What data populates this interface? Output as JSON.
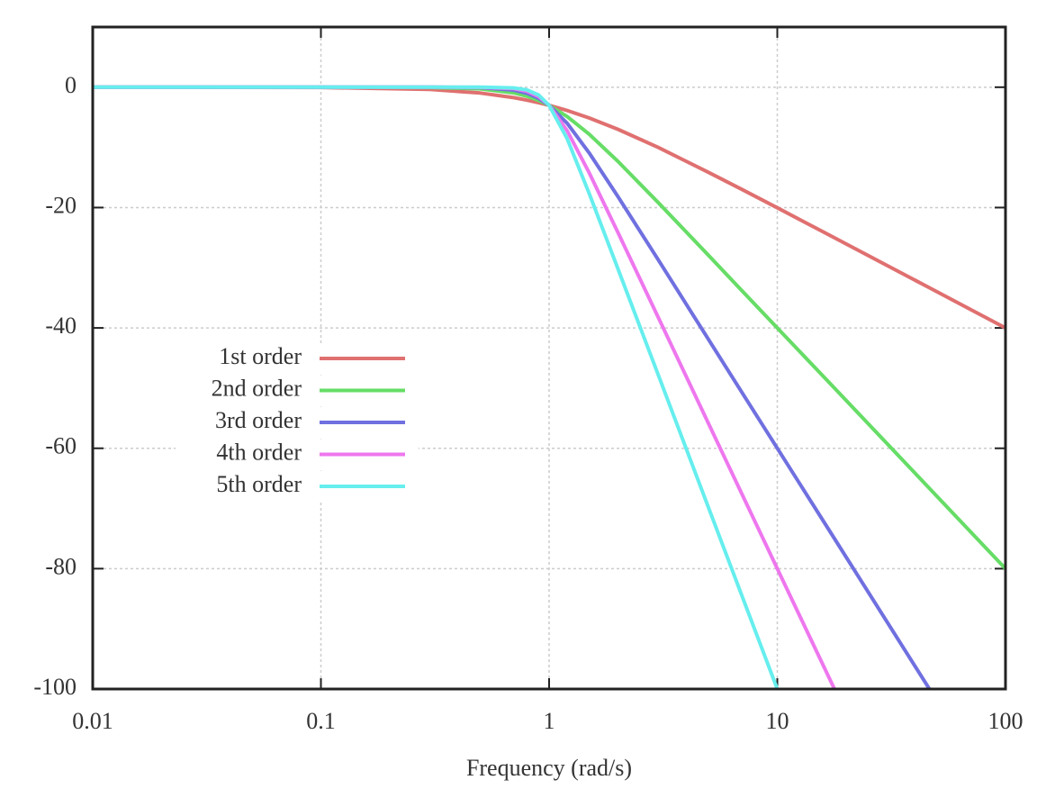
{
  "chart_data": {
    "type": "line",
    "xlabel": "Frequency (rad/s)",
    "x": [
      0.01,
      0.1,
      0.3,
      0.5,
      0.7,
      0.8,
      0.9,
      1,
      1.2,
      1.5,
      2,
      3,
      5,
      7,
      10,
      17.8,
      46.4,
      100
    ],
    "series": [
      {
        "name": "1st order",
        "color": "#e07070",
        "values": [
          0,
          -0.04,
          -0.37,
          -0.97,
          -1.73,
          -2.15,
          -2.58,
          -3.01,
          -3.87,
          -5.12,
          -6.99,
          -10,
          -14.15,
          -16.99,
          -20.04,
          -25.02,
          -33.33,
          -40
        ]
      },
      {
        "name": "2nd order",
        "color": "#66dd66",
        "values": [
          0,
          0,
          -0.04,
          -0.26,
          -0.94,
          -1.49,
          -2.19,
          -3.01,
          -4.88,
          -7.83,
          -12.3,
          -19.14,
          -27.96,
          -33.8,
          -40,
          -50,
          -66.66,
          -80
        ]
      },
      {
        "name": "3rd order",
        "color": "#7070e0",
        "values": [
          0,
          0,
          0,
          -0.07,
          -0.48,
          -1.01,
          -1.85,
          -3.01,
          -6,
          -10.93,
          -18.13,
          -28.63,
          -41.94,
          -50.71,
          -60,
          -75,
          -100,
          null
        ]
      },
      {
        "name": "4th order",
        "color": "#ee77ee",
        "values": [
          0,
          0,
          0,
          -0.02,
          -0.24,
          -0.67,
          -1.55,
          -3.01,
          -7.24,
          -14.25,
          -24.1,
          -38.17,
          -55.92,
          -67.6,
          -80,
          -100,
          null,
          null
        ]
      },
      {
        "name": "5th order",
        "color": "#66eeee",
        "values": [
          0,
          0,
          0,
          0,
          -0.12,
          -0.44,
          -1.3,
          -3.01,
          -8.57,
          -17.69,
          -30.11,
          -47.71,
          -69.9,
          -84.5,
          -100,
          null,
          null,
          null
        ]
      }
    ],
    "xlim": [
      0.01,
      100
    ],
    "xticks": [
      0.01,
      0.1,
      1,
      10,
      100
    ],
    "xscale": "log",
    "ylim": [
      -100,
      10
    ],
    "yticks": [
      0,
      -20,
      -40,
      -60,
      -80,
      -100
    ],
    "grid": true,
    "legend": "left"
  }
}
